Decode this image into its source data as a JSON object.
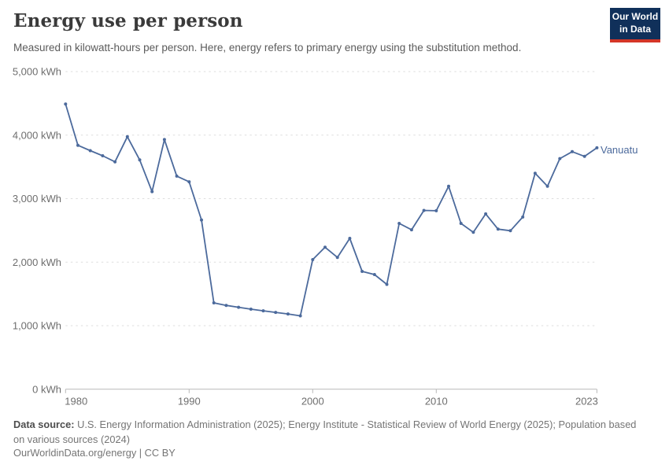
{
  "header": {
    "title": "Energy use per person",
    "subtitle": "Measured in kilowatt-hours per person. Here, energy refers to primary energy using the substitution method."
  },
  "logo": {
    "line1": "Our World",
    "line2": "in Data"
  },
  "chart_data": {
    "type": "line",
    "title": "Energy use per person",
    "unit": "kWh",
    "xlabel": "",
    "ylabel": "kilowatt-hours per person",
    "xlim": [
      1980,
      2023
    ],
    "ylim": [
      0,
      5000
    ],
    "grid": "dashed-horizontal",
    "legend_position": "right-of-line-end",
    "series": [
      {
        "name": "Vanuatu",
        "color": "#4c6a9c",
        "x": [
          1980,
          1981,
          1982,
          1983,
          1984,
          1985,
          1986,
          1987,
          1988,
          1989,
          1990,
          1991,
          1992,
          1993,
          1994,
          1995,
          1996,
          1997,
          1998,
          1999,
          2000,
          2001,
          2002,
          2003,
          2004,
          2005,
          2006,
          2007,
          2008,
          2009,
          2010,
          2011,
          2012,
          2013,
          2014,
          2015,
          2016,
          2017,
          2018,
          2019,
          2020,
          2021,
          2022,
          2023
        ],
        "values": [
          4490,
          3840,
          3755,
          3675,
          3580,
          3975,
          3610,
          3110,
          3930,
          3355,
          3265,
          2665,
          1360,
          1320,
          1290,
          1260,
          1235,
          1210,
          1185,
          1155,
          2040,
          2235,
          2075,
          2375,
          1855,
          1805,
          1650,
          2610,
          2510,
          2815,
          2810,
          3195,
          2610,
          2470,
          2760,
          2520,
          2495,
          2710,
          3400,
          3195,
          3630,
          3740,
          3665,
          3800
        ]
      }
    ],
    "yticks": [
      {
        "value": 0,
        "label": "0 kWh"
      },
      {
        "value": 1000,
        "label": "1,000 kWh"
      },
      {
        "value": 2000,
        "label": "2,000 kWh"
      },
      {
        "value": 3000,
        "label": "3,000 kWh"
      },
      {
        "value": 4000,
        "label": "4,000 kWh"
      },
      {
        "value": 5000,
        "label": "5,000 kWh"
      }
    ],
    "xticks": [
      {
        "value": 1980,
        "label": "1980",
        "align": "start"
      },
      {
        "value": 1990,
        "label": "1990",
        "align": "middle"
      },
      {
        "value": 2000,
        "label": "2000",
        "align": "middle"
      },
      {
        "value": 2010,
        "label": "2010",
        "align": "middle"
      },
      {
        "value": 2023,
        "label": "2023",
        "align": "end"
      }
    ]
  },
  "colors": {
    "line": "#4c6a9c",
    "grid": "#dedede",
    "axis": "#b8b8b8",
    "tick_text": "#6e6e6e",
    "title": "#3a3a3a",
    "subtitle": "#5b5b5b",
    "footer": "#757575",
    "logo_bg": "#10305a",
    "logo_accent": "#d43627"
  },
  "footer": {
    "source_label": "Data source:",
    "source_text": " U.S. Energy Information Administration (2025); Energy Institute - Statistical Review of World Energy (2025); Population based on various sources (2024)",
    "license_line": "OurWorldinData.org/energy | CC BY"
  }
}
